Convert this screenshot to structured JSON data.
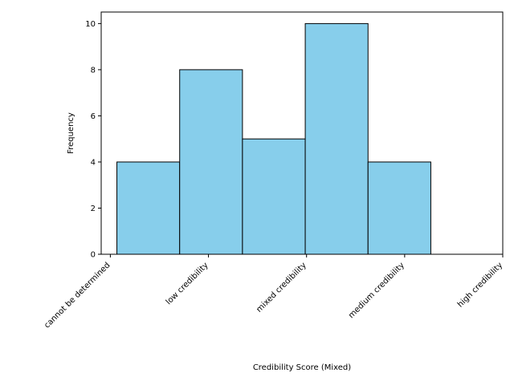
{
  "chart_data": {
    "type": "bar",
    "title": "",
    "xlabel": "Credibility Score (Mixed)",
    "ylabel": "Frequency",
    "x_tick_labels": [
      "cannot be determined",
      "low credibility",
      "mixed credibility",
      "medium credibility",
      "high credibility"
    ],
    "x_tick_positions": [
      0.0,
      1.5,
      3.0,
      4.5,
      6.0
    ],
    "bins": [
      {
        "start": 0.1,
        "end": 1.06,
        "value": 4
      },
      {
        "start": 1.06,
        "end": 2.02,
        "value": 8
      },
      {
        "start": 2.02,
        "end": 2.98,
        "value": 5
      },
      {
        "start": 2.98,
        "end": 3.94,
        "value": 10
      },
      {
        "start": 3.94,
        "end": 4.9,
        "value": 4
      }
    ],
    "xlim": [
      -0.14,
      6.0
    ],
    "ylim": [
      0,
      10.5
    ],
    "yticks": [
      0,
      2,
      4,
      6,
      8,
      10
    ],
    "bar_color": "#87ceeb",
    "edge_color": "#000000",
    "grid": false,
    "legend": "none"
  }
}
